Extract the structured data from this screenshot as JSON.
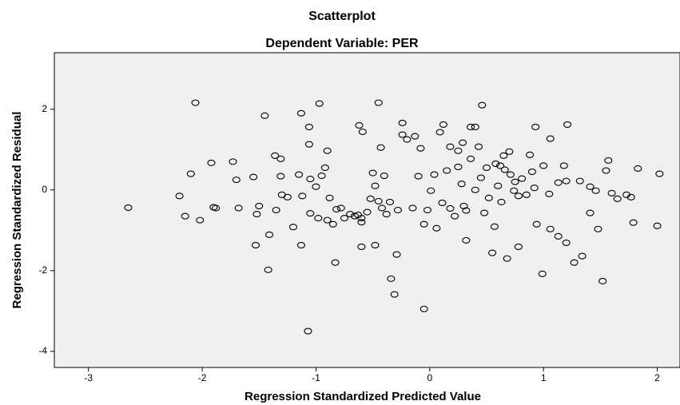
{
  "chart_data": {
    "type": "scatter",
    "title": "Scatterplot",
    "subtitle": "Dependent Variable: PER",
    "x_label": "Regression Standardized Predicted Value",
    "y_label": "Regression Standardized Residual",
    "xlim": [
      -3.3,
      2.2
    ],
    "ylim": [
      -4.4,
      3.4
    ],
    "xticks": [
      -3,
      -2,
      -1,
      0,
      1,
      2
    ],
    "yticks": [
      -4,
      -2,
      0,
      2
    ],
    "x": [
      -2.65,
      -2.06,
      -2.1,
      -2.2,
      -2.15,
      -2.02,
      -1.92,
      -1.9,
      -1.88,
      -1.73,
      -1.7,
      -1.68,
      -1.55,
      -1.52,
      -1.5,
      -1.53,
      -1.41,
      -1.42,
      -1.36,
      -1.31,
      -1.31,
      -1.35,
      -1.3,
      -1.25,
      -1.2,
      -1.15,
      -1.12,
      -1.13,
      -1.13,
      -1.45,
      -1.06,
      -1.06,
      -1.05,
      -1.05,
      -1.0,
      -0.97,
      -0.95,
      -0.92,
      -0.9,
      -0.98,
      -0.9,
      -0.88,
      -0.85,
      -0.82,
      -0.78,
      -0.75,
      -0.83,
      -0.7,
      -0.66,
      -0.63,
      -0.6,
      -0.62,
      -0.59,
      -0.6,
      -0.6,
      -0.55,
      -0.52,
      -0.5,
      -0.48,
      -0.48,
      -0.45,
      -0.43,
      -0.45,
      -0.42,
      -0.4,
      -0.38,
      -0.35,
      -0.31,
      -0.34,
      -0.29,
      -0.28,
      -0.24,
      -0.24,
      -0.2,
      -0.13,
      -0.08,
      -0.1,
      -0.15,
      -0.05,
      -0.05,
      -0.02,
      0.01,
      0.04,
      0.06,
      0.09,
      0.12,
      0.11,
      0.15,
      0.18,
      0.18,
      0.22,
      0.25,
      0.25,
      0.29,
      0.28,
      0.32,
      0.32,
      0.36,
      0.36,
      0.4,
      0.43,
      0.46,
      0.45,
      0.48,
      0.5,
      0.52,
      0.55,
      0.57,
      0.58,
      0.6,
      0.63,
      0.65,
      0.68,
      0.66,
      0.71,
      0.7,
      0.74,
      0.75,
      0.78,
      0.78,
      0.81,
      0.85,
      0.88,
      0.93,
      0.92,
      0.94,
      0.99,
      1.0,
      1.06,
      1.06,
      1.05,
      1.13,
      1.13,
      1.2,
      1.2,
      1.21,
      1.18,
      1.27,
      1.34,
      1.32,
      1.41,
      1.41,
      1.46,
      1.48,
      1.52,
      1.55,
      1.57,
      1.6,
      1.65,
      1.73,
      1.77,
      1.79,
      1.83,
      2.0,
      2.02,
      -1.07,
      0.3,
      0.4,
      0.62,
      0.9
    ],
    "values": [
      -0.44,
      2.16,
      0.4,
      -0.15,
      -0.65,
      -0.75,
      0.67,
      -0.43,
      -0.45,
      0.7,
      0.25,
      -0.45,
      0.32,
      -0.6,
      -0.4,
      -1.37,
      -1.11,
      -1.98,
      0.85,
      0.77,
      0.34,
      -0.5,
      -0.12,
      -0.18,
      -0.92,
      0.38,
      -0.15,
      -1.37,
      1.9,
      1.84,
      1.56,
      1.13,
      0.27,
      -0.58,
      0.08,
      2.14,
      0.35,
      0.55,
      0.97,
      -0.7,
      -0.75,
      -0.2,
      -0.85,
      -0.48,
      -0.45,
      -0.7,
      -1.8,
      -0.6,
      -0.65,
      -0.62,
      -0.7,
      1.6,
      1.44,
      -0.8,
      -1.41,
      -0.55,
      -0.22,
      0.42,
      0.1,
      -1.37,
      2.16,
      1.05,
      -0.28,
      -0.45,
      0.35,
      -0.6,
      -0.3,
      -2.59,
      -2.2,
      -1.6,
      -0.5,
      1.66,
      1.37,
      1.25,
      1.33,
      1.03,
      0.34,
      -0.45,
      -2.95,
      -0.85,
      -0.5,
      -0.02,
      0.38,
      -0.95,
      1.43,
      1.62,
      -0.32,
      0.48,
      1.07,
      -0.46,
      -0.65,
      0.57,
      0.97,
      1.17,
      0.15,
      -0.51,
      -1.25,
      1.56,
      0.77,
      1.56,
      1.07,
      2.1,
      0.3,
      -0.57,
      0.55,
      -0.2,
      -1.56,
      -0.91,
      0.65,
      0.1,
      -0.3,
      0.85,
      -1.7,
      0.5,
      0.38,
      0.95,
      -0.02,
      0.2,
      -1.41,
      -0.15,
      0.28,
      -0.12,
      0.87,
      1.56,
      0.05,
      -0.85,
      -2.08,
      0.6,
      -0.97,
      1.27,
      -0.1,
      0.18,
      -1.15,
      0.22,
      -1.31,
      1.62,
      0.6,
      -1.8,
      -1.64,
      0.22,
      0.08,
      -0.57,
      -0.02,
      -0.97,
      -2.26,
      0.48,
      0.73,
      -0.08,
      -0.22,
      -0.12,
      -0.18,
      -0.81,
      0.53,
      -0.89,
      0.4,
      -3.5,
      -0.4,
      0.0,
      0.6,
      0.45
    ]
  }
}
